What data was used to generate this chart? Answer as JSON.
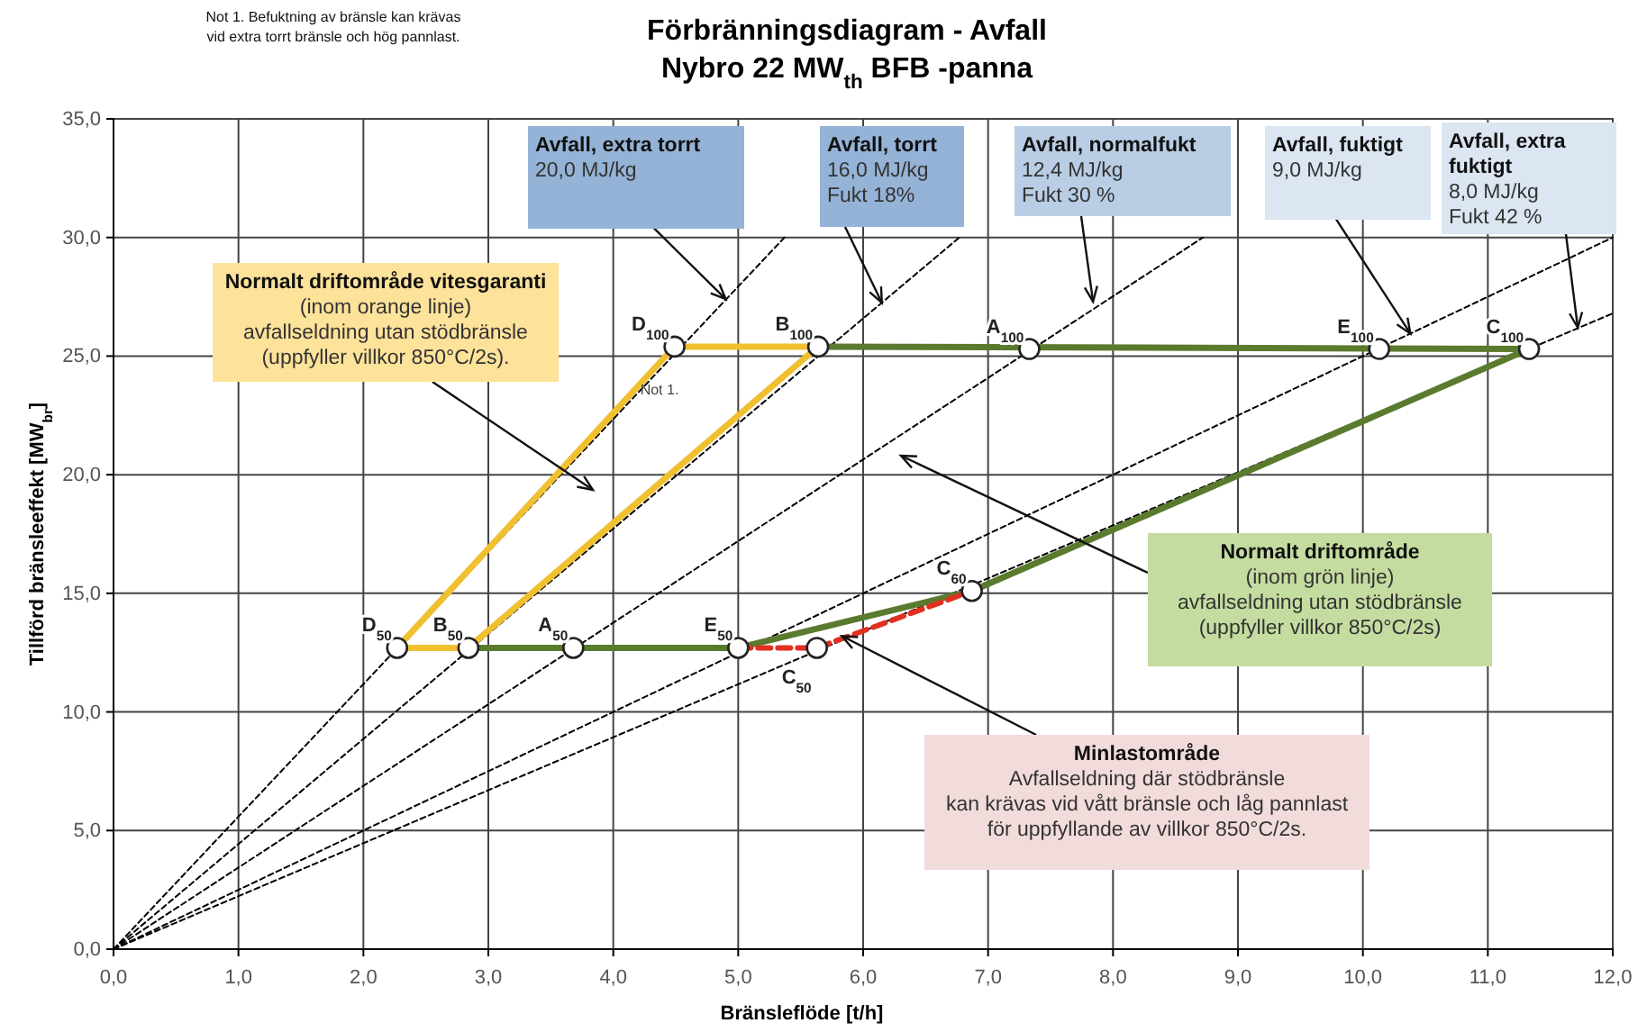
{
  "chart_data": {
    "type": "line",
    "title": "Förbränningsdiagram - Avfall",
    "subtitle": "Nybro 22 MW$_{th}$ BFB -panna",
    "xlabel": "Bränsleflöde [t/h]",
    "ylabel": "Tillförd bränsleeffekt   [MW$_{br}$]",
    "xlim": [
      0,
      12
    ],
    "ylim": [
      0,
      35
    ],
    "xticks": [
      {
        "value": 0,
        "label": "0,0"
      },
      {
        "value": 1,
        "label": "1,0"
      },
      {
        "value": 2,
        "label": "2,0"
      },
      {
        "value": 3,
        "label": "3,0"
      },
      {
        "value": 4,
        "label": "4,0"
      },
      {
        "value": 5,
        "label": "5,0"
      },
      {
        "value": 6,
        "label": "6,0"
      },
      {
        "value": 7,
        "label": "7,0"
      },
      {
        "value": 8,
        "label": "8,0"
      },
      {
        "value": 9,
        "label": "9,0"
      },
      {
        "value": 10,
        "label": "10,0"
      },
      {
        "value": 11,
        "label": "11,0"
      },
      {
        "value": 12,
        "label": "12,0"
      }
    ],
    "yticks": [
      {
        "value": 0,
        "label": "0,0"
      },
      {
        "value": 5,
        "label": "5,0"
      },
      {
        "value": 10,
        "label": "10,0"
      },
      {
        "value": 15,
        "label": "15,0"
      },
      {
        "value": 20,
        "label": "20,0"
      },
      {
        "value": 25,
        "label": "25,0"
      },
      {
        "value": 30,
        "label": "30,0"
      },
      {
        "value": 35,
        "label": "35,0"
      }
    ],
    "grid": true,
    "series": [
      {
        "type": "line",
        "color": "#000000",
        "line_style": "dotted",
        "x": [
          0,
          5.37
        ],
        "values": [
          0,
          30.0
        ]
      },
      {
        "type": "line",
        "color": "#000000",
        "line_style": "dotted",
        "x": [
          0,
          6.77
        ],
        "values": [
          0,
          30.0
        ]
      },
      {
        "type": "line",
        "color": "#000000",
        "line_style": "dotted",
        "x": [
          0,
          8.72
        ],
        "values": [
          0,
          30.0
        ]
      },
      {
        "type": "line",
        "color": "#000000",
        "line_style": "dotted",
        "x": [
          0,
          12.0
        ],
        "values": [
          0,
          30.0
        ]
      },
      {
        "type": "line",
        "color": "#000000",
        "line_style": "dotted",
        "x": [
          0,
          12.0
        ],
        "values": [
          0,
          26.8
        ]
      },
      {
        "color": "#5a7a2e",
        "line_style": "solid",
        "x": [
          5.64,
          11.33,
          6.87,
          5.0,
          2.84
        ],
        "values": [
          25.4,
          25.3,
          15.1,
          12.7,
          12.7
        ]
      },
      {
        "color": "#f0c030",
        "line_style": "solid",
        "x": [
          2.27,
          4.49,
          5.64
        ],
        "values": [
          12.7,
          25.4,
          25.4
        ]
      },
      {
        "color": "#f0c030",
        "line_style": "solid",
        "x": [
          5.64,
          2.84,
          2.27
        ],
        "values": [
          25.4,
          12.7,
          12.7
        ]
      },
      {
        "color": "#e03020",
        "line_style": "dashed",
        "x": [
          5.0,
          5.63,
          6.87
        ],
        "values": [
          12.7,
          12.7,
          15.1
        ]
      },
      {
        "type": "scatter",
        "color": "#ffffff",
        "marker": "circle",
        "x": [
          4.49,
          5.64,
          7.33,
          10.13,
          11.33,
          2.27,
          2.84,
          3.68,
          5.0,
          5.63,
          6.87
        ],
        "values": [
          25.4,
          25.4,
          25.3,
          25.3,
          25.3,
          12.7,
          12.7,
          12.7,
          12.7,
          12.7,
          15.1
        ]
      }
    ],
    "annotations": [
      "Not 1. Befuktning av bränsle kan krävas\nvid extra torrt bränsle och hög pannlast.",
      "Not 1.",
      {
        "text": "Avfall, extra torrt\n20,0 MJ/kg",
        "x": 4.9,
        "y": 27.4
      },
      {
        "text": "Avfall, torrt\n16,0 MJ/kg\nFukt 18%",
        "x": 6.15,
        "y": 27.25
      },
      {
        "text": "Avfall, normalfukt\n12,4 MJ/kg\nFukt 30 %",
        "x": 7.84,
        "y": 27.3
      },
      {
        "text": "Avfall, fuktigt\n9,0 MJ/kg",
        "x": 10.38,
        "y": 25.95
      },
      {
        "text": "Avfall, extra\nfuktigt\n8,0 MJ/kg\nFukt 42 %",
        "x": 11.72,
        "y": 26.2
      },
      "Normalt driftområde vitesgaranti\n(inom orange linje)\navfallseldning utan stödbränsle\n(uppfyller villkor 850°C/2s).",
      "Normalt driftområde\n(inom grön linje)\navfallseldning utan stödbränsle\n(uppfyller villkor 850°C/2s)",
      {
        "text": "Minlastområde\nAvfallseldning där stödbränsle\nkan krävas vid vått bränsle och låg pannlast\nför uppfyllande av villkor 850°C/2s.",
        "x": 5.83,
        "y": 13.2
      },
      {
        "text": "D$_{100}$",
        "x": 4.49,
        "y": 25.4
      },
      {
        "text": "B$_{100}$",
        "x": 5.64,
        "y": 25.4
      },
      {
        "text": "A$_{100}$",
        "x": 7.33,
        "y": 25.3
      },
      {
        "text": "E$_{100}$",
        "x": 10.13,
        "y": 25.3
      },
      {
        "text": "C$_{100}$",
        "x": 11.33,
        "y": 25.3
      },
      {
        "text": "D$_{50}$",
        "x": 2.27,
        "y": 12.7
      },
      {
        "text": "B$_{50}$",
        "x": 2.84,
        "y": 12.7
      },
      {
        "text": "A$_{50}$",
        "x": 3.68,
        "y": 12.7
      },
      {
        "text": "E$_{50}$",
        "x": 5.0,
        "y": 12.7
      },
      {
        "text": "C$_{50}$",
        "x": 5.63,
        "y": 12.7
      },
      {
        "text": "C$_{60}$",
        "x": 6.87,
        "y": 15.1
      }
    ]
  }
}
